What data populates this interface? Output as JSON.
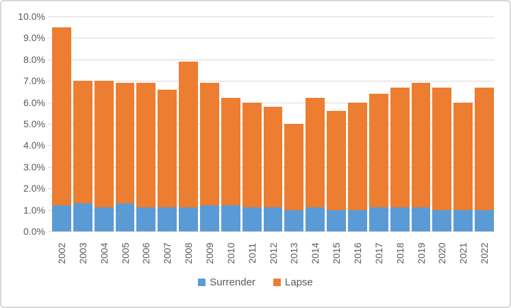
{
  "window": {
    "background": "#FFFFFF",
    "border_color": "#D8D8D8"
  },
  "chart_data": {
    "type": "bar",
    "stacked": true,
    "title": "",
    "xlabel": "",
    "ylabel": "",
    "categories": [
      "2002",
      "2003",
      "2004",
      "2005",
      "2006",
      "2007",
      "2008",
      "2009",
      "2010",
      "2011",
      "2012",
      "2013",
      "2014",
      "2015",
      "2016",
      "2017",
      "2018",
      "2019",
      "2020",
      "2021",
      "2022"
    ],
    "series": [
      {
        "name": "Surrender",
        "color": "#5B9BD5",
        "values": [
          1.2,
          1.3,
          1.1,
          1.3,
          1.1,
          1.1,
          1.1,
          1.2,
          1.2,
          1.1,
          1.1,
          1.0,
          1.1,
          1.0,
          1.0,
          1.1,
          1.1,
          1.1,
          1.0,
          1.0,
          1.0
        ]
      },
      {
        "name": "Lapse",
        "color": "#ED7D31",
        "values": [
          8.3,
          5.7,
          5.9,
          5.6,
          5.8,
          5.5,
          6.8,
          5.7,
          5.0,
          4.9,
          4.7,
          4.0,
          5.1,
          4.6,
          5.0,
          5.3,
          5.6,
          5.8,
          5.7,
          5.0,
          5.7
        ]
      }
    ],
    "ylim": [
      0,
      10
    ],
    "ytick_labels": [
      "0.0%",
      "1.0%",
      "2.0%",
      "3.0%",
      "4.0%",
      "5.0%",
      "6.0%",
      "7.0%",
      "8.0%",
      "9.0%",
      "10.0%"
    ],
    "grid": true,
    "legend_position": "bottom",
    "axis_text_color": "#595959",
    "gridline_color": "#D9D9D9"
  }
}
